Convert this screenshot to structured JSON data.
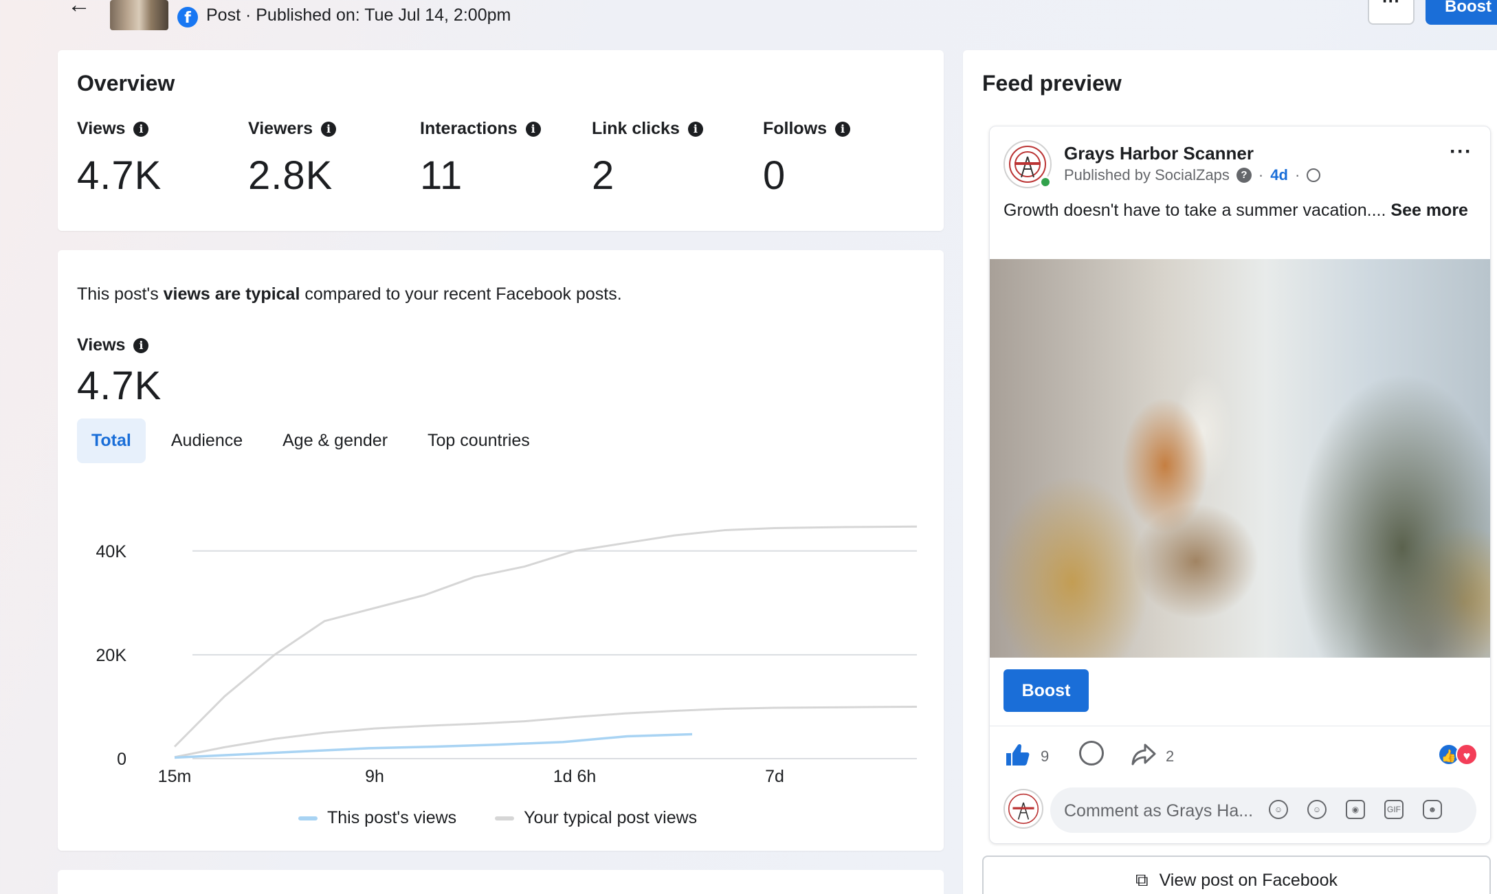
{
  "header": {
    "post_meta": "Post · Published on: Tue Jul 14, 2:00pm",
    "more_label": "···",
    "boost_label": "Boost"
  },
  "overview": {
    "title": "Overview",
    "metrics": [
      {
        "label": "Views",
        "value": "4.7K"
      },
      {
        "label": "Viewers",
        "value": "2.8K"
      },
      {
        "label": "Interactions",
        "value": "11"
      },
      {
        "label": "Link clicks",
        "value": "2"
      },
      {
        "label": "Follows",
        "value": "0"
      }
    ]
  },
  "views_section": {
    "sentence_prefix": "This post's ",
    "sentence_bold": "views are typical",
    "sentence_suffix": " compared to your recent Facebook posts.",
    "label": "Views",
    "value": "4.7K",
    "tabs": [
      "Total",
      "Audience",
      "Age & gender",
      "Top countries"
    ],
    "active_tab": "Total"
  },
  "chart_data": {
    "type": "line",
    "x_ticks": [
      "15m",
      "9h",
      "1d 6h",
      "7d"
    ],
    "y_ticks": [
      "0",
      "20K",
      "40K"
    ],
    "ylim": [
      0,
      45000
    ],
    "series": [
      {
        "name": "This post's views",
        "color": "#a8d3f3",
        "x": [
          "15m",
          "",
          "",
          "9h",
          "",
          "",
          "1d 6h",
          "",
          ""
        ],
        "values": [
          200,
          800,
          1400,
          2000,
          2300,
          2700,
          3200,
          4300,
          4700
        ]
      },
      {
        "name": "Your typical post views",
        "color": "#d6d6d6",
        "x": [
          "15m",
          "",
          "",
          "9h",
          "",
          "",
          "1d 6h",
          "",
          "",
          "",
          "",
          "",
          "7d",
          "",
          ""
        ],
        "upper": [
          2300,
          12000,
          20000,
          26500,
          29000,
          31500,
          35000,
          37000,
          40000,
          41500,
          43000,
          44000,
          44400,
          44600,
          44700
        ],
        "median": [
          300,
          2200,
          3800,
          5000,
          5800,
          6300,
          6700,
          7200,
          8000,
          8700,
          9200,
          9600,
          9800,
          9900,
          10000
        ]
      }
    ],
    "legend": [
      "This post's views",
      "Your typical post views"
    ],
    "legend_position": "bottom",
    "grid": true
  },
  "feed_preview": {
    "title": "Feed preview",
    "page_name": "Grays Harbor Scanner",
    "published_by": "Published by SocialZaps",
    "age": "4d",
    "dot": "·",
    "post_text": "Growth doesn't have to take a summer vacation.... ",
    "see_more": "See more",
    "boost_label": "Boost",
    "like_count": "9",
    "share_count": "2",
    "comment_placeholder": "Comment as Grays Ha...",
    "view_on_facebook": "View post on Facebook"
  },
  "colors": {
    "accent": "#1a6ed8",
    "series_this_post": "#a8d3f3",
    "series_typical": "#d6d6d6"
  }
}
